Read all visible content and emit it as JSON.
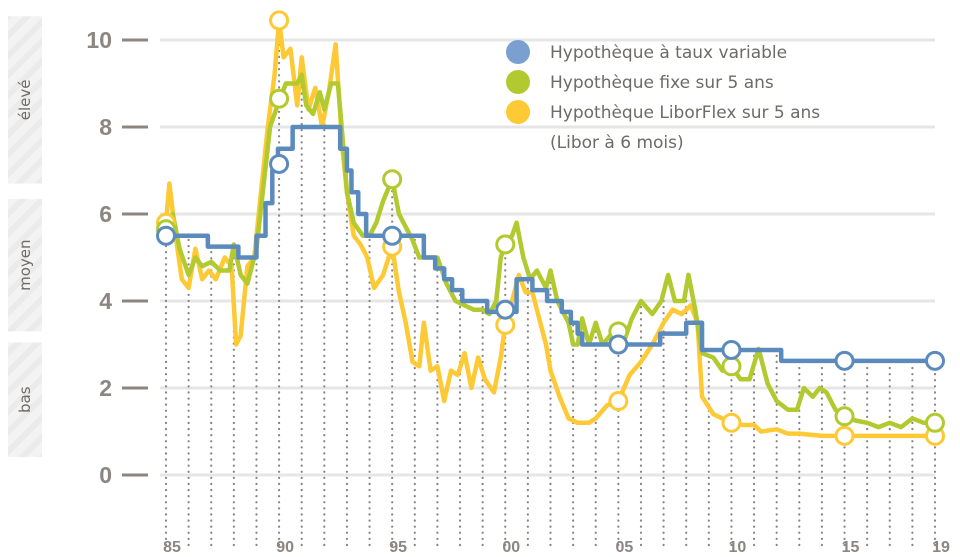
{
  "chart_data": {
    "type": "line",
    "xlim": [
      1985,
      2019
    ],
    "ylim": [
      0,
      10
    ],
    "yticks": [
      0,
      2,
      4,
      6,
      8,
      10
    ],
    "xticks": [
      {
        "value": 1985,
        "label": "85"
      },
      {
        "value": 1990,
        "label": "90"
      },
      {
        "value": 1995,
        "label": "95"
      },
      {
        "value": 2000,
        "label": "00"
      },
      {
        "value": 2005,
        "label": "05"
      },
      {
        "value": 2010,
        "label": "10"
      },
      {
        "value": 2015,
        "label": "15"
      },
      {
        "value": 2019,
        "label": "19"
      }
    ],
    "grid": true,
    "legend_position": "top-right",
    "bands": [
      {
        "label": "élevé",
        "range": [
          6.7,
          10.5
        ]
      },
      {
        "label": "moyen",
        "range": [
          3.3,
          6.3
        ]
      },
      {
        "label": "bas",
        "range": [
          0,
          3.0
        ]
      }
    ],
    "marker_years": [
      1985,
      1990,
      1995,
      2000,
      2005,
      2010,
      2015,
      2019
    ],
    "series": [
      {
        "name": "Hypothèque à taux variable",
        "color": "#5b8bbd",
        "legend_color": "#7aa0d0",
        "step": true,
        "points": [
          [
            1985,
            5.5
          ],
          [
            1986.85,
            5.25
          ],
          [
            1988.2,
            5.0
          ],
          [
            1989.0,
            5.5
          ],
          [
            1989.4,
            6.25
          ],
          [
            1989.7,
            7.0
          ],
          [
            1989.95,
            7.5
          ],
          [
            1990.6,
            8.0
          ],
          [
            1992.7,
            7.5
          ],
          [
            1993.0,
            7.0
          ],
          [
            1993.2,
            6.5
          ],
          [
            1993.5,
            6.0
          ],
          [
            1993.85,
            5.5
          ],
          [
            1996.4,
            5.0
          ],
          [
            1996.9,
            4.75
          ],
          [
            1997.3,
            4.5
          ],
          [
            1997.65,
            4.25
          ],
          [
            1998.1,
            4.0
          ],
          [
            1999.2,
            3.75
          ],
          [
            2000.5,
            4.5
          ],
          [
            2001.2,
            4.25
          ],
          [
            2001.85,
            4.0
          ],
          [
            2002.5,
            3.75
          ],
          [
            2002.9,
            3.5
          ],
          [
            2003.2,
            3.25
          ],
          [
            2003.4,
            3.0
          ],
          [
            2006.85,
            3.25
          ],
          [
            2008.0,
            3.5
          ],
          [
            2008.7,
            2.875
          ],
          [
            2012.2,
            2.625
          ],
          [
            2019,
            2.625
          ]
        ],
        "markers": [
          5.5,
          7.15,
          5.5,
          3.8,
          3.0,
          2.875,
          2.625,
          2.625
        ]
      },
      {
        "name": "Hypothèque fixe sur 5 ans",
        "color": "#b2c92f",
        "legend_color": "#b2c92f",
        "step": false,
        "points": [
          [
            1985,
            5.6
          ],
          [
            1985.3,
            6.0
          ],
          [
            1985.6,
            5.2
          ],
          [
            1986,
            4.6
          ],
          [
            1986.3,
            5.0
          ],
          [
            1986.6,
            4.8
          ],
          [
            1987,
            4.9
          ],
          [
            1987.4,
            4.7
          ],
          [
            1987.8,
            4.7
          ],
          [
            1988,
            5.3
          ],
          [
            1988.3,
            4.6
          ],
          [
            1988.6,
            4.4
          ],
          [
            1989,
            5.2
          ],
          [
            1989.3,
            6.6
          ],
          [
            1989.6,
            8.0
          ],
          [
            1990,
            8.6
          ],
          [
            1990.3,
            9.0
          ],
          [
            1990.8,
            9.0
          ],
          [
            1991,
            9.2
          ],
          [
            1991.2,
            8.5
          ],
          [
            1991.5,
            8.3
          ],
          [
            1991.8,
            8.8
          ],
          [
            1992,
            8.4
          ],
          [
            1992.3,
            9.0
          ],
          [
            1992.6,
            9.0
          ],
          [
            1992.8,
            7.8
          ],
          [
            1993,
            6.5
          ],
          [
            1993.3,
            5.8
          ],
          [
            1993.7,
            5.5
          ],
          [
            1994,
            5.5
          ],
          [
            1994.3,
            5.8
          ],
          [
            1994.6,
            6.3
          ],
          [
            1995,
            6.8
          ],
          [
            1995.3,
            6.0
          ],
          [
            1995.6,
            5.7
          ],
          [
            1995.9,
            5.4
          ],
          [
            1996.2,
            5.0
          ],
          [
            1996.6,
            5.0
          ],
          [
            1997,
            5.0
          ],
          [
            1997.4,
            4.4
          ],
          [
            1997.8,
            4.0
          ],
          [
            1998.2,
            3.9
          ],
          [
            1998.6,
            3.8
          ],
          [
            1999,
            3.8
          ],
          [
            1999.3,
            3.7
          ],
          [
            1999.6,
            4.0
          ],
          [
            1999.8,
            5.0
          ],
          [
            2000,
            5.3
          ],
          [
            2000.3,
            5.5
          ],
          [
            2000.5,
            5.8
          ],
          [
            2000.8,
            5.0
          ],
          [
            2001.1,
            4.5
          ],
          [
            2001.4,
            4.7
          ],
          [
            2001.8,
            4.3
          ],
          [
            2002,
            4.7
          ],
          [
            2002.3,
            4.0
          ],
          [
            2002.8,
            3.5
          ],
          [
            2003,
            3.0
          ],
          [
            2003.2,
            3.0
          ],
          [
            2003.4,
            3.6
          ],
          [
            2003.7,
            3.0
          ],
          [
            2004,
            3.5
          ],
          [
            2004.3,
            3.0
          ],
          [
            2004.8,
            3.3
          ],
          [
            2005.2,
            3.0
          ],
          [
            2005.6,
            3.6
          ],
          [
            2006,
            4.0
          ],
          [
            2006.5,
            3.7
          ],
          [
            2006.9,
            4.0
          ],
          [
            2007.2,
            4.6
          ],
          [
            2007.5,
            4.0
          ],
          [
            2007.9,
            4.0
          ],
          [
            2008.1,
            4.6
          ],
          [
            2008.4,
            3.8
          ],
          [
            2008.7,
            2.8
          ],
          [
            2009.2,
            2.7
          ],
          [
            2009.6,
            2.4
          ],
          [
            2010,
            2.5
          ],
          [
            2010.4,
            2.2
          ],
          [
            2010.8,
            2.2
          ],
          [
            2011.2,
            2.9
          ],
          [
            2011.6,
            2.1
          ],
          [
            2012,
            1.7
          ],
          [
            2012.5,
            1.5
          ],
          [
            2012.9,
            1.5
          ],
          [
            2013.2,
            2.0
          ],
          [
            2013.6,
            1.8
          ],
          [
            2013.9,
            2.0
          ],
          [
            2014.2,
            1.9
          ],
          [
            2014.6,
            1.5
          ],
          [
            2015,
            1.35
          ],
          [
            2015.5,
            1.25
          ],
          [
            2016,
            1.2
          ],
          [
            2016.5,
            1.1
          ],
          [
            2017,
            1.2
          ],
          [
            2017.5,
            1.1
          ],
          [
            2018,
            1.3
          ],
          [
            2018.5,
            1.2
          ],
          [
            2019,
            1.2
          ]
        ],
        "markers": [
          5.65,
          8.65,
          6.8,
          5.3,
          3.3,
          2.5,
          1.35,
          1.2
        ]
      },
      {
        "name": "Hypothèque LiborFlex sur 5 ans",
        "name_line2": "(Libor à 6 mois)",
        "color": "#fdc935",
        "legend_color": "#fdc935",
        "step": false,
        "points": [
          [
            1985,
            5.8
          ],
          [
            1985.15,
            6.7
          ],
          [
            1985.4,
            5.6
          ],
          [
            1985.7,
            4.5
          ],
          [
            1986,
            4.3
          ],
          [
            1986.3,
            5.2
          ],
          [
            1986.6,
            4.5
          ],
          [
            1986.9,
            4.7
          ],
          [
            1987.2,
            4.5
          ],
          [
            1987.6,
            5.0
          ],
          [
            1987.9,
            4.8
          ],
          [
            1988.1,
            3.0
          ],
          [
            1988.3,
            3.2
          ],
          [
            1988.6,
            4.8
          ],
          [
            1988.9,
            5.0
          ],
          [
            1989.2,
            6.5
          ],
          [
            1989.5,
            8.0
          ],
          [
            1989.8,
            9.2
          ],
          [
            1990,
            10.45
          ],
          [
            1990.2,
            9.6
          ],
          [
            1990.5,
            9.8
          ],
          [
            1990.8,
            8.5
          ],
          [
            1991,
            9.6
          ],
          [
            1991.3,
            8.4
          ],
          [
            1991.6,
            8.9
          ],
          [
            1991.9,
            8.0
          ],
          [
            1992.2,
            8.8
          ],
          [
            1992.5,
            9.9
          ],
          [
            1992.8,
            7.5
          ],
          [
            1993,
            6.5
          ],
          [
            1993.3,
            5.5
          ],
          [
            1993.6,
            5.3
          ],
          [
            1993.9,
            5.0
          ],
          [
            1994.2,
            4.3
          ],
          [
            1994.6,
            4.6
          ],
          [
            1995,
            5.25
          ],
          [
            1995.3,
            4.2
          ],
          [
            1995.6,
            3.5
          ],
          [
            1995.9,
            2.6
          ],
          [
            1996.2,
            2.5
          ],
          [
            1996.4,
            3.5
          ],
          [
            1996.7,
            2.4
          ],
          [
            1997,
            2.5
          ],
          [
            1997.3,
            1.7
          ],
          [
            1997.6,
            2.4
          ],
          [
            1997.9,
            2.3
          ],
          [
            1998.2,
            2.8
          ],
          [
            1998.5,
            2.0
          ],
          [
            1998.8,
            2.7
          ],
          [
            1999.1,
            2.2
          ],
          [
            1999.5,
            1.9
          ],
          [
            1999.8,
            2.7
          ],
          [
            2000,
            3.45
          ],
          [
            2000.3,
            4.0
          ],
          [
            2000.6,
            4.6
          ],
          [
            2000.9,
            4.2
          ],
          [
            2001.2,
            4.2
          ],
          [
            2001.5,
            3.6
          ],
          [
            2001.8,
            3.0
          ],
          [
            2002,
            2.4
          ],
          [
            2002.4,
            1.8
          ],
          [
            2002.8,
            1.3
          ],
          [
            2003.2,
            1.2
          ],
          [
            2003.7,
            1.2
          ],
          [
            2004,
            1.3
          ],
          [
            2004.5,
            1.6
          ],
          [
            2005,
            1.7
          ],
          [
            2005.5,
            2.3
          ],
          [
            2006,
            2.6
          ],
          [
            2006.5,
            3.0
          ],
          [
            2007,
            3.5
          ],
          [
            2007.4,
            3.8
          ],
          [
            2007.8,
            3.7
          ],
          [
            2008.2,
            3.9
          ],
          [
            2008.5,
            3.5
          ],
          [
            2008.7,
            1.8
          ],
          [
            2009.2,
            1.4
          ],
          [
            2010,
            1.2
          ],
          [
            2010.5,
            1.15
          ],
          [
            2011,
            1.15
          ],
          [
            2011.3,
            1.0
          ],
          [
            2012,
            1.05
          ],
          [
            2012.5,
            0.95
          ],
          [
            2013,
            0.95
          ],
          [
            2014,
            0.9
          ],
          [
            2015,
            0.9
          ],
          [
            2019,
            0.9
          ]
        ],
        "markers": [
          5.8,
          10.45,
          5.25,
          3.45,
          1.7,
          1.2,
          0.9,
          0.9
        ]
      }
    ]
  }
}
